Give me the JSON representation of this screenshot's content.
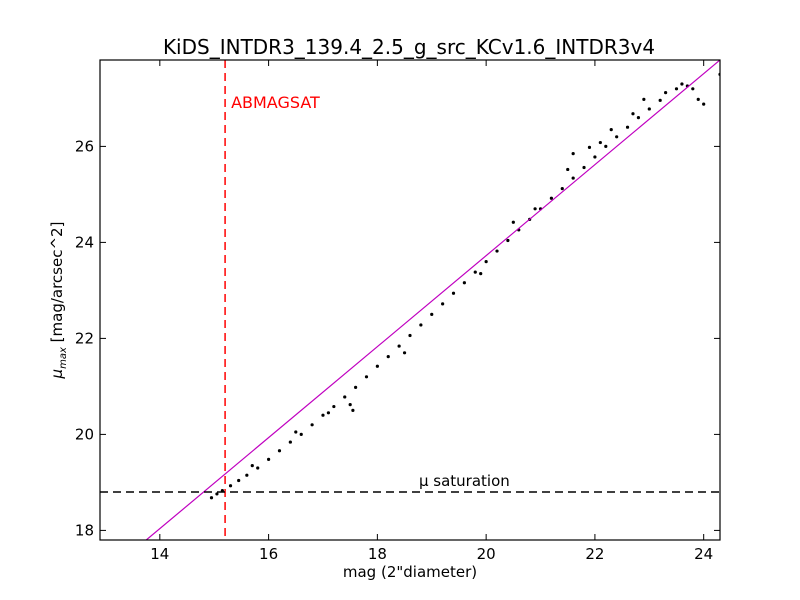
{
  "chart_data": {
    "type": "scatter",
    "title": "KiDS_INTDR3_139.4_2.5_g_src_KCv1.6_INTDR3v4",
    "xlabel": "mag (2\"diameter)",
    "ylabel_symbol": "μ",
    "ylabel_sub": "max",
    "ylabel_unit": " [mag/arcsec^2]",
    "xlim": [
      12.9,
      24.3
    ],
    "ylim": [
      17.8,
      27.8
    ],
    "xticks": [
      14,
      16,
      18,
      20,
      22,
      24
    ],
    "yticks": [
      18,
      20,
      22,
      24,
      26
    ],
    "grid": false,
    "legend": "none",
    "series": [
      {
        "kind": "points",
        "color": "#000000",
        "points": [
          [
            14.95,
            18.68
          ],
          [
            15.05,
            18.76
          ],
          [
            15.15,
            18.83
          ],
          [
            15.3,
            18.93
          ],
          [
            15.45,
            19.04
          ],
          [
            15.6,
            19.15
          ],
          [
            15.8,
            19.3
          ],
          [
            16.0,
            19.48
          ],
          [
            16.2,
            19.66
          ],
          [
            16.4,
            19.84
          ],
          [
            16.6,
            20.0
          ],
          [
            16.8,
            20.2
          ],
          [
            17.0,
            20.4
          ],
          [
            17.2,
            20.58
          ],
          [
            17.4,
            20.78
          ],
          [
            17.6,
            20.98
          ],
          [
            17.8,
            21.2
          ],
          [
            18.0,
            21.42
          ],
          [
            18.2,
            21.62
          ],
          [
            18.4,
            21.84
          ],
          [
            18.6,
            22.06
          ],
          [
            18.8,
            22.28
          ],
          [
            19.0,
            22.5
          ],
          [
            19.2,
            22.72
          ],
          [
            19.4,
            22.94
          ],
          [
            19.6,
            23.16
          ],
          [
            19.8,
            23.38
          ],
          [
            20.0,
            23.6
          ],
          [
            20.2,
            23.82
          ],
          [
            20.4,
            24.04
          ],
          [
            20.6,
            24.26
          ],
          [
            20.8,
            24.48
          ],
          [
            21.0,
            24.7
          ],
          [
            21.2,
            24.92
          ],
          [
            21.4,
            25.12
          ],
          [
            21.6,
            25.34
          ],
          [
            21.8,
            25.56
          ],
          [
            22.0,
            25.78
          ],
          [
            22.2,
            26.0
          ],
          [
            22.4,
            26.2
          ],
          [
            22.6,
            26.4
          ],
          [
            22.8,
            26.6
          ],
          [
            23.0,
            26.78
          ],
          [
            23.2,
            26.96
          ],
          [
            17.5,
            20.62
          ],
          [
            18.5,
            21.7
          ],
          [
            20.5,
            24.42
          ],
          [
            21.5,
            25.52
          ],
          [
            22.1,
            26.08
          ],
          [
            22.7,
            26.68
          ],
          [
            23.3,
            27.12
          ],
          [
            23.5,
            27.2
          ],
          [
            23.7,
            27.26
          ],
          [
            23.9,
            26.98
          ],
          [
            24.0,
            26.88
          ],
          [
            24.3,
            27.5
          ],
          [
            19.9,
            23.35
          ],
          [
            20.9,
            24.7
          ],
          [
            21.9,
            25.98
          ],
          [
            22.9,
            26.98
          ],
          [
            15.7,
            19.35
          ],
          [
            16.5,
            20.05
          ],
          [
            17.1,
            20.45
          ],
          [
            17.55,
            20.5
          ],
          [
            21.6,
            25.85
          ],
          [
            22.3,
            26.35
          ],
          [
            23.6,
            27.3
          ],
          [
            23.8,
            27.2
          ]
        ]
      },
      {
        "kind": "line",
        "name": "",
        "color": "#c000c0",
        "points": [
          [
            13.75,
            17.8
          ],
          [
            24.3,
            27.8
          ]
        ]
      }
    ],
    "annotations": [
      {
        "text": "ABMAGSAT",
        "color": "#ff0000",
        "kind": "vline",
        "x": 15.2,
        "style": "dashed"
      },
      {
        "text": "μ saturation",
        "color": "#000000",
        "kind": "hline",
        "y": 18.8,
        "style": "dashed"
      }
    ]
  }
}
